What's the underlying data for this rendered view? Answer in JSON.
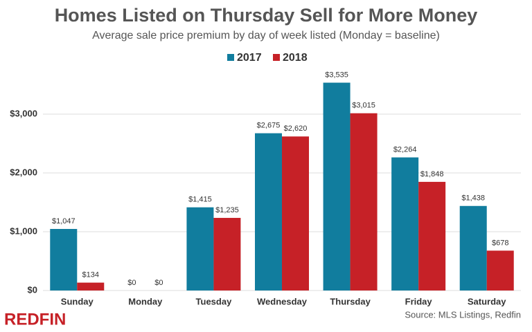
{
  "chart_data": {
    "type": "bar",
    "title": "Homes Listed on Thursday Sell for More Money",
    "subtitle": "Average sale price premium by day of week listed (Monday = baseline)",
    "categories": [
      "Sunday",
      "Monday",
      "Tuesday",
      "Wednesday",
      "Thursday",
      "Friday",
      "Saturday"
    ],
    "series": [
      {
        "name": "2017",
        "color": "#117d9e",
        "values": [
          1047,
          0,
          1415,
          2675,
          3535,
          2264,
          1438
        ],
        "value_labels": [
          "$1,047",
          "$0",
          "$1,415",
          "$2,675",
          "$3,535",
          "$2,264",
          "$1,438"
        ]
      },
      {
        "name": "2018",
        "color": "#c62127",
        "values": [
          134,
          0,
          1235,
          2620,
          3015,
          1848,
          678
        ],
        "value_labels": [
          "$134",
          "$0",
          "$1,235",
          "$2,620",
          "$3,015",
          "$1,848",
          "$678"
        ]
      }
    ],
    "ylim": [
      0,
      4000
    ],
    "yticks": [
      {
        "value": 0,
        "label": "$0"
      },
      {
        "value": 1000,
        "label": "$1,000"
      },
      {
        "value": 2000,
        "label": "$2,000"
      },
      {
        "value": 3000,
        "label": "$3,000"
      }
    ],
    "grid": true,
    "legend": "top",
    "source": "Source: MLS Listings, Redfin",
    "logo": "REDFIN"
  }
}
